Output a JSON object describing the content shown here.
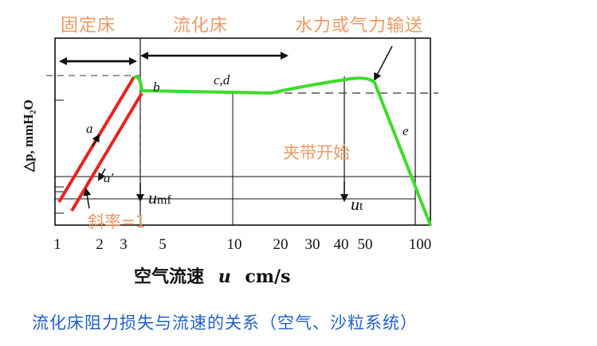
{
  "regions": {
    "fixed_bed": "固定床",
    "fluidized_bed": "流化床",
    "transport": "水力或气力输送"
  },
  "axes": {
    "y_label": "△p, mmH₂O",
    "x_label_cn": "空气流速",
    "x_label_var": "u",
    "x_label_unit": "cm/s",
    "x_ticks": [
      "1",
      "2",
      "3",
      "5",
      "10",
      "20",
      "30",
      "40",
      "50",
      "100"
    ]
  },
  "annotations": {
    "a": "a",
    "a_prime": "a′",
    "b": "b",
    "cd": "c,d",
    "e": "e",
    "entrainment_start": "夹带开始",
    "slope": "斜率=1",
    "umf_var": "u",
    "umf_sub": "mf",
    "ut_var": "u",
    "ut_sub": "t"
  },
  "caption": "流化床阻力损失与流速的关系（空气、沙粒系统）",
  "colors": {
    "curve_red": "#e8231f",
    "curve_green": "#3ddc2a",
    "region_label": "#ec9a63",
    "caption": "#1f5fc7"
  }
}
